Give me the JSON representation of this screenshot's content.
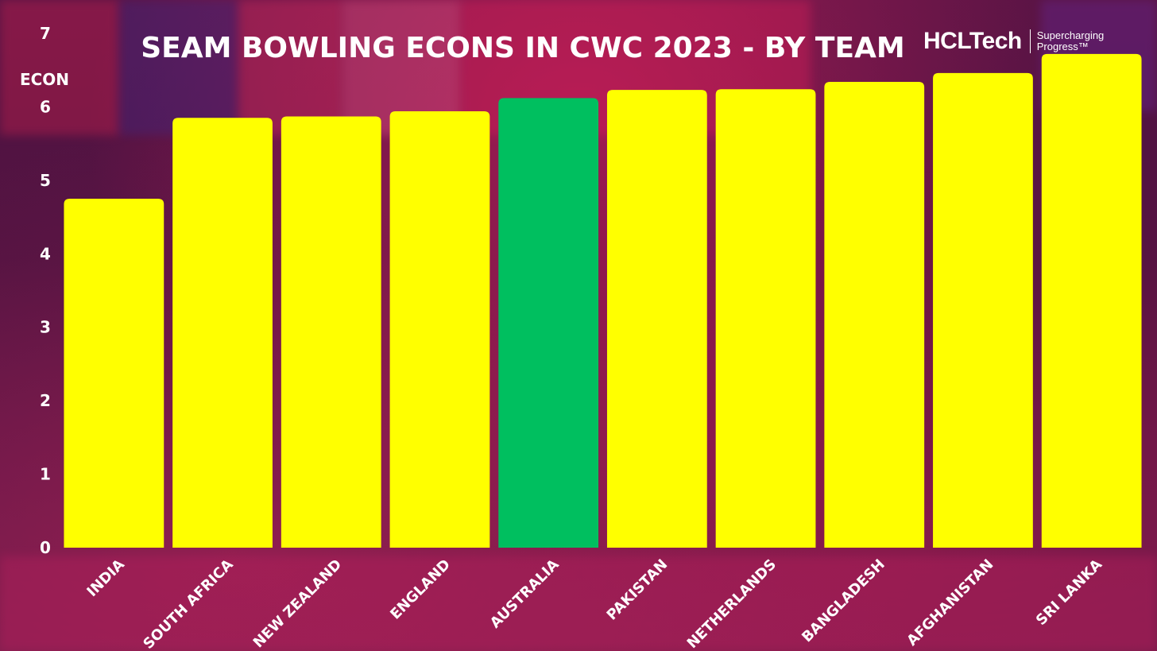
{
  "brand": {
    "name": "HCLTech",
    "tagline_line1": "Supercharging",
    "tagline_line2": "Progress™"
  },
  "colors": {
    "bar_default": "#ffff00",
    "bar_highlight": "#00bf5f",
    "text": "#ffffff"
  },
  "chart_data": {
    "type": "bar",
    "title": "SEAM BOWLING ECONS IN CWC 2023 - BY TEAM",
    "xlabel": "",
    "ylabel": "ECON",
    "ylim": [
      0,
      7
    ],
    "yticks": [
      0,
      1,
      2,
      3,
      4,
      5,
      6,
      7
    ],
    "categories": [
      "INDIA",
      "SOUTH AFRICA",
      "NEW ZEALAND",
      "ENGLAND",
      "AUSTRALIA",
      "PAKISTAN",
      "NETHERLANDS",
      "BANGLADESH",
      "AFGHANISTAN",
      "SRI LANKA"
    ],
    "values": [
      4.75,
      5.85,
      5.87,
      5.94,
      6.12,
      6.23,
      6.24,
      6.34,
      6.46,
      6.72
    ],
    "highlight_category": "AUSTRALIA",
    "grid": false,
    "legend": "none"
  }
}
